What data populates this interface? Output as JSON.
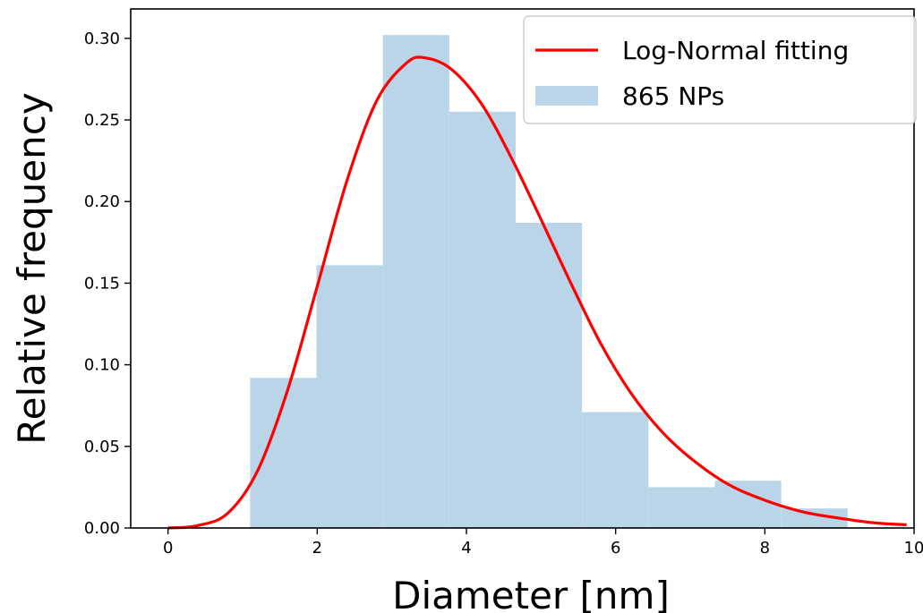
{
  "chart_data": {
    "type": "bar",
    "subtype": "histogram-with-fit",
    "xlabel": "Diameter [nm]",
    "ylabel": "Relative frequency",
    "xlim": [
      -0.5,
      10.0
    ],
    "ylim": [
      0.0,
      0.318
    ],
    "xticks": [
      0,
      2,
      4,
      6,
      8,
      10
    ],
    "yticks": [
      0.0,
      0.05,
      0.1,
      0.15,
      0.2,
      0.25,
      0.3
    ],
    "xtick_labels": [
      "0",
      "2",
      "4",
      "6",
      "8",
      "10"
    ],
    "ytick_labels": [
      "0.00",
      "0.05",
      "0.10",
      "0.15",
      "0.20",
      "0.25",
      "0.30"
    ],
    "legend_position": "top-right",
    "series": [
      {
        "name": "865 NPs",
        "kind": "histogram",
        "color": "#bbd5e8",
        "bin_edges": [
          1.1,
          1.99,
          2.88,
          3.77,
          4.66,
          5.55,
          6.44,
          7.33,
          8.22,
          9.11
        ],
        "values": [
          0.092,
          0.161,
          0.302,
          0.255,
          0.187,
          0.071,
          0.025,
          0.029,
          0.012
        ]
      },
      {
        "name": "Log-Normal fitting",
        "kind": "line",
        "color": "#ff0000",
        "x": [
          0.0,
          0.4,
          0.8,
          1.2,
          1.6,
          2.0,
          2.4,
          2.8,
          3.2,
          3.45,
          3.8,
          4.2,
          4.6,
          5.0,
          5.4,
          5.8,
          6.2,
          6.6,
          7.0,
          7.5,
          8.0,
          8.5,
          9.0,
          9.5,
          9.9
        ],
        "y": [
          0.0,
          0.0015,
          0.009,
          0.035,
          0.084,
          0.148,
          0.213,
          0.262,
          0.285,
          0.288,
          0.281,
          0.26,
          0.227,
          0.189,
          0.15,
          0.113,
          0.083,
          0.06,
          0.043,
          0.027,
          0.017,
          0.01,
          0.006,
          0.003,
          0.002
        ]
      }
    ]
  }
}
